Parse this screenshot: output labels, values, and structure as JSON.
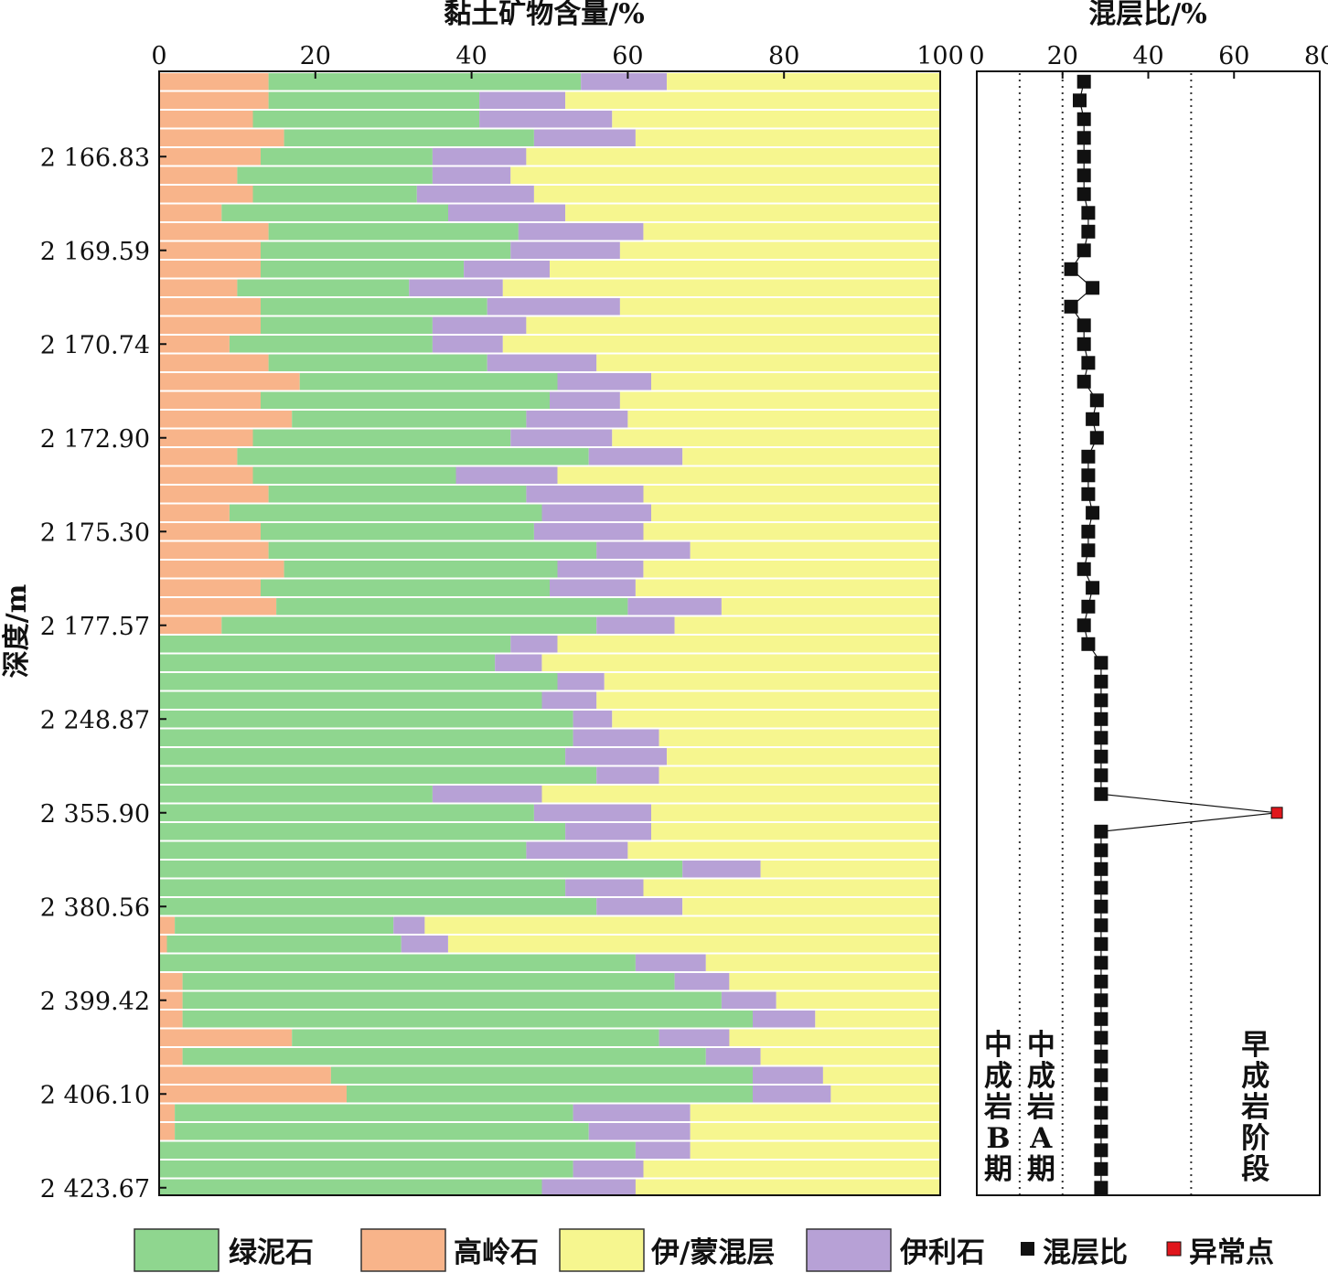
{
  "colors": {
    "chlorite": "#8fd68f",
    "kaolinite": "#f8b48a",
    "illite_smectite": "#f6f68f",
    "illite": "#b7a1d6",
    "ratio": "#111111",
    "anomaly": "#e0161c"
  },
  "chart_data": [
    {
      "type": "bar",
      "orientation": "horizontal-stacked",
      "title": "黏土矿物含量/%",
      "ylabel": "深度/m",
      "xlim": [
        0,
        100
      ],
      "xticks": [
        "0",
        "20",
        "40",
        "60",
        "80",
        "100"
      ],
      "depth_labels": [
        "2 166.83",
        "2 169.59",
        "2 170.74",
        "2 172.90",
        "2 175.30",
        "2 177.57",
        "2 248.87",
        "2 355.90",
        "2 380.56",
        "2 399.42",
        "2 406.10",
        "2 423.67"
      ],
      "depth_label_samples": [
        4,
        9,
        14,
        19,
        24,
        29,
        34,
        39,
        44,
        49,
        54,
        59
      ],
      "series": [
        {
          "name": "高岭石",
          "key": "kaolinite",
          "values": [
            14,
            14,
            12,
            16,
            13,
            10,
            12,
            8,
            14,
            13,
            13,
            10,
            13,
            13,
            9,
            14,
            18,
            13,
            17,
            12,
            10,
            12,
            14,
            9,
            13,
            14,
            16,
            13,
            15,
            8,
            0,
            0,
            0,
            0,
            0,
            0,
            0,
            0,
            0,
            0,
            0,
            0,
            0,
            0,
            0,
            2,
            1,
            0,
            3,
            3,
            3,
            17,
            3,
            22,
            24,
            2,
            2,
            0,
            0,
            0
          ]
        },
        {
          "name": "绿泥石",
          "key": "chlorite",
          "values": [
            40,
            27,
            29,
            32,
            22,
            25,
            21,
            29,
            32,
            32,
            26,
            22,
            29,
            22,
            26,
            28,
            33,
            37,
            30,
            33,
            45,
            26,
            33,
            40,
            35,
            42,
            35,
            37,
            45,
            48,
            45,
            43,
            51,
            49,
            53,
            53,
            52,
            56,
            35,
            48,
            52,
            47,
            67,
            52,
            56,
            28,
            30,
            61,
            63,
            69,
            73,
            47,
            67,
            54,
            52,
            51,
            53,
            61,
            53,
            49
          ]
        },
        {
          "name": "伊利石",
          "key": "illite",
          "values": [
            11,
            11,
            17,
            13,
            12,
            10,
            15,
            15,
            16,
            14,
            11,
            12,
            17,
            12,
            9,
            14,
            12,
            9,
            13,
            13,
            12,
            13,
            15,
            14,
            14,
            12,
            11,
            11,
            12,
            10,
            6,
            6,
            6,
            7,
            5,
            11,
            13,
            8,
            14,
            15,
            11,
            13,
            10,
            10,
            11,
            4,
            6,
            9,
            7,
            7,
            8,
            9,
            7,
            9,
            10,
            15,
            13,
            7,
            9,
            12
          ]
        },
        {
          "name": "伊/蒙混层",
          "key": "illite_smectite",
          "values": [
            35,
            48,
            42,
            39,
            53,
            55,
            52,
            48,
            38,
            41,
            50,
            56,
            41,
            53,
            56,
            44,
            37,
            41,
            40,
            42,
            33,
            49,
            38,
            37,
            38,
            32,
            38,
            39,
            28,
            34,
            49,
            51,
            43,
            44,
            42,
            36,
            35,
            36,
            51,
            37,
            37,
            40,
            23,
            38,
            33,
            66,
            63,
            30,
            27,
            21,
            16,
            27,
            23,
            15,
            14,
            32,
            32,
            32,
            38,
            39
          ]
        }
      ]
    },
    {
      "type": "line",
      "title": "混层比/%",
      "xlim": [
        0,
        80
      ],
      "xticks": [
        "0",
        "20",
        "40",
        "60",
        "80"
      ],
      "reference_lines_x": [
        10,
        20,
        50
      ],
      "stage_labels": [
        "中成岩B期",
        "中成岩A期",
        "早成岩阶段"
      ],
      "series": [
        {
          "name": "混层比",
          "key": "ratio",
          "values": [
            25,
            24,
            25,
            25,
            25,
            25,
            25,
            26,
            26,
            25,
            22,
            27,
            22,
            25,
            25,
            26,
            25,
            28,
            27,
            28,
            26,
            26,
            26,
            27,
            26,
            26,
            25,
            27,
            26,
            25,
            26,
            29,
            29,
            29,
            29,
            29,
            29,
            29,
            29,
            70,
            29,
            29,
            29,
            29,
            29,
            29,
            29,
            29,
            29,
            29,
            29,
            29,
            29,
            29,
            29,
            29,
            29,
            29,
            29,
            29
          ]
        },
        {
          "name": "异常点",
          "key": "anomaly",
          "sample": 39,
          "value": 70
        }
      ]
    }
  ],
  "legend": {
    "chlorite": "绿泥石",
    "kaolinite": "高岭石",
    "illite_smectite": "伊/蒙混层",
    "illite": "伊利石",
    "ratio": "混层比",
    "anomaly": "异常点"
  }
}
